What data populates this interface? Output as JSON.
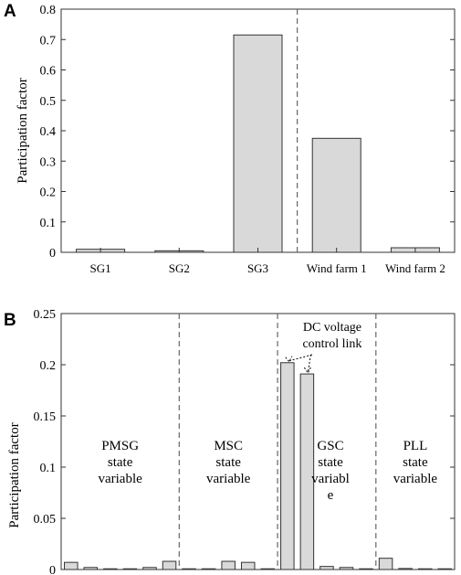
{
  "chart_data": [
    {
      "type": "bar",
      "panel": "A",
      "ylabel": "Participation factor",
      "ylim": [
        0,
        0.8
      ],
      "yticks": [
        "0",
        "0.1",
        "0.2",
        "0.3",
        "0.4",
        "0.5",
        "0.6",
        "0.7",
        "0.8"
      ],
      "categories": [
        "SG1",
        "SG2",
        "SG3",
        "Wind farm 1",
        "Wind farm 2"
      ],
      "values": [
        0.01,
        0.005,
        0.715,
        0.375,
        0.015
      ],
      "dividers_after_category_index": [
        2
      ],
      "grid": false
    },
    {
      "type": "bar",
      "panel": "B",
      "ylabel": "Participation factor",
      "ylim": [
        0,
        0.25
      ],
      "yticks": [
        "0",
        "0.05",
        "0.1",
        "0.15",
        "0.2",
        "0.25"
      ],
      "values": [
        0.007,
        0.002,
        0.0,
        0.0,
        0.002,
        0.008,
        0.0,
        0.0,
        0.008,
        0.007,
        0.0,
        0.202,
        0.191,
        0.003,
        0.002,
        0.0,
        0.011,
        0.001,
        0.0,
        0.0
      ],
      "dividers_after_bar_index": [
        5,
        10,
        15
      ],
      "regions": [
        {
          "lines": [
            "PMSG",
            "state",
            "variable"
          ]
        },
        {
          "lines": [
            "MSC",
            "state",
            "variable"
          ]
        },
        {
          "lines": [
            "GSC",
            "state",
            "variabl",
            "e"
          ]
        },
        {
          "lines": [
            "PLL",
            "state",
            "variable"
          ]
        }
      ],
      "annotation": {
        "lines": [
          "DC voltage",
          "control link"
        ],
        "points_to_bars": [
          11,
          12
        ]
      },
      "grid": false
    }
  ]
}
